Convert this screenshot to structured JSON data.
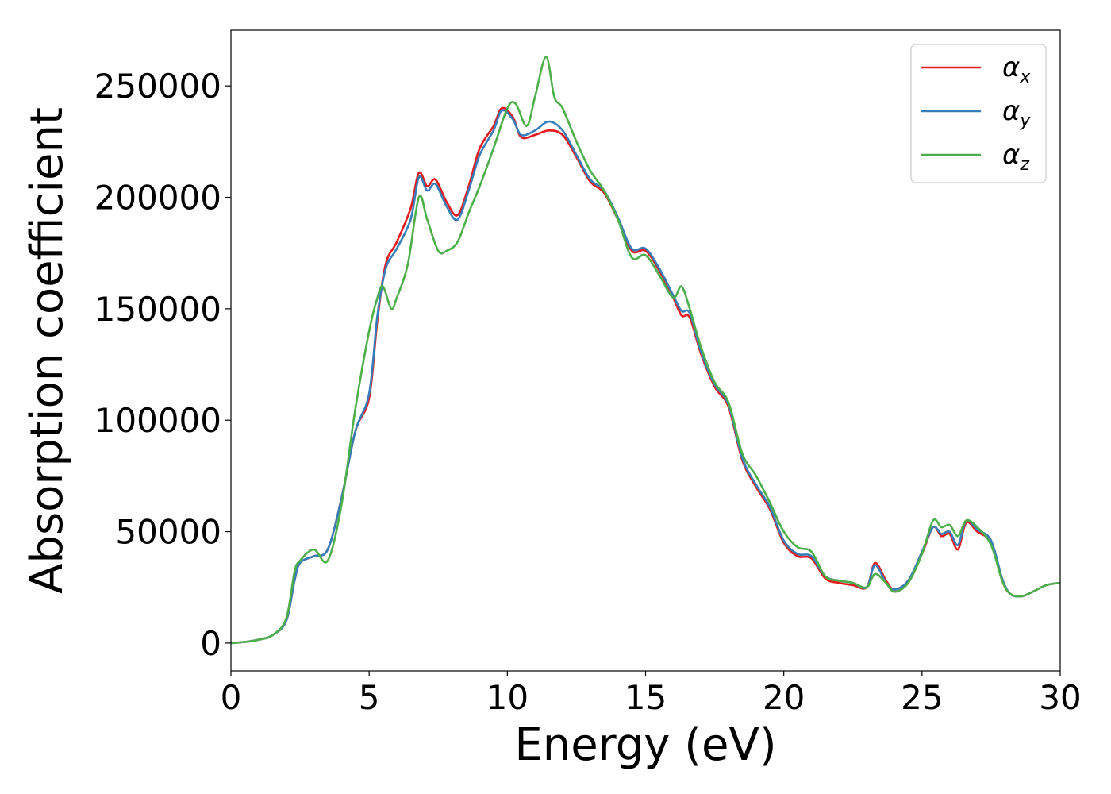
{
  "chart_data": {
    "type": "line",
    "title": "",
    "xlabel": "Energy (eV)",
    "ylabel": "Absorption coefficient",
    "xlim": [
      0,
      30
    ],
    "ylim": [
      -12500,
      275000
    ],
    "xticks": [
      0,
      5,
      10,
      15,
      20,
      25,
      30
    ],
    "yticks": [
      0,
      50000,
      100000,
      150000,
      200000,
      250000
    ],
    "grid": false,
    "legend_position": "upper right",
    "series": [
      {
        "name": "α_x",
        "base": "α",
        "sub": "x",
        "color": "#e41a1c",
        "x": [
          0,
          0.5,
          1,
          1.5,
          2,
          2.3,
          2.5,
          3,
          3.5,
          4,
          4.5,
          5,
          5.3,
          5.6,
          6,
          6.5,
          6.8,
          7.1,
          7.4,
          7.8,
          8.2,
          8.6,
          9,
          9.5,
          9.8,
          10.2,
          10.5,
          11,
          11.5,
          12,
          12.5,
          13,
          13.5,
          14,
          14.5,
          15,
          15.5,
          16,
          16.3,
          16.6,
          17,
          17.5,
          18,
          18.5,
          19,
          19.5,
          20,
          20.5,
          21,
          21.5,
          22,
          22.5,
          23,
          23.3,
          23.7,
          24,
          24.5,
          25,
          25.4,
          25.7,
          26,
          26.3,
          26.6,
          27,
          27.5,
          27.9,
          28.2,
          28.6,
          29,
          29.5,
          30
        ],
        "y": [
          0,
          500,
          1500,
          3500,
          10000,
          28000,
          36000,
          39000,
          42000,
          65000,
          95000,
          110000,
          145000,
          170000,
          180000,
          195000,
          211000,
          205000,
          208000,
          198000,
          192000,
          205000,
          222000,
          232000,
          240000,
          236000,
          227000,
          228000,
          230000,
          228000,
          218000,
          207000,
          202000,
          190000,
          176000,
          176000,
          167000,
          155000,
          147000,
          146000,
          130000,
          115000,
          106000,
          82000,
          70000,
          60000,
          45000,
          39000,
          38000,
          29000,
          27000,
          26000,
          25000,
          36000,
          28000,
          24000,
          28000,
          40000,
          52000,
          48000,
          49000,
          42000,
          54000,
          50000,
          45000,
          28000,
          22000,
          21000,
          23000,
          26000,
          27000
        ]
      },
      {
        "name": "α_y",
        "base": "α",
        "sub": "y",
        "color": "#377eb8",
        "x": [
          0,
          0.5,
          1,
          1.5,
          2,
          2.3,
          2.5,
          3,
          3.5,
          4,
          4.5,
          5,
          5.3,
          5.6,
          6,
          6.5,
          6.8,
          7.1,
          7.4,
          7.8,
          8.2,
          8.6,
          9,
          9.5,
          9.8,
          10.2,
          10.5,
          11,
          11.5,
          12,
          12.5,
          13,
          13.5,
          14,
          14.5,
          15,
          15.5,
          16,
          16.3,
          16.6,
          17,
          17.5,
          18,
          18.5,
          19,
          19.5,
          20,
          20.5,
          21,
          21.5,
          22,
          22.5,
          23,
          23.3,
          23.7,
          24,
          24.5,
          25,
          25.4,
          25.7,
          26,
          26.3,
          26.6,
          27,
          27.5,
          27.9,
          28.2,
          28.6,
          29,
          29.5,
          30
        ],
        "y": [
          0,
          500,
          1500,
          3500,
          10000,
          28000,
          36000,
          39000,
          42000,
          65000,
          95000,
          112000,
          147000,
          168000,
          177000,
          190000,
          209000,
          203000,
          206000,
          196000,
          190000,
          203000,
          219000,
          230000,
          239000,
          235000,
          228000,
          230000,
          234000,
          230000,
          219000,
          208000,
          203000,
          191000,
          177000,
          177000,
          168000,
          156000,
          149000,
          148000,
          131000,
          116000,
          107000,
          83000,
          71000,
          61000,
          46000,
          40000,
          39000,
          30000,
          28000,
          27000,
          25000,
          35000,
          27000,
          24000,
          28000,
          41000,
          52000,
          49000,
          50000,
          44000,
          55000,
          51000,
          46000,
          29000,
          22000,
          21000,
          23000,
          26000,
          27000
        ]
      },
      {
        "name": "α_z",
        "base": "α",
        "sub": "z",
        "color": "#4daf4a",
        "x": [
          0,
          0.5,
          1,
          1.5,
          2,
          2.3,
          2.5,
          3,
          3.5,
          4,
          4.5,
          5,
          5.3,
          5.5,
          5.8,
          6,
          6.4,
          6.8,
          7.1,
          7.5,
          7.8,
          8.2,
          8.6,
          9,
          9.5,
          10,
          10.3,
          10.7,
          11,
          11.4,
          11.7,
          12,
          12.5,
          13,
          13.5,
          14,
          14.5,
          15,
          15.5,
          16,
          16.3,
          16.6,
          17,
          17.5,
          18,
          18.5,
          19,
          19.5,
          20,
          20.5,
          21,
          21.5,
          22,
          22.5,
          23,
          23.3,
          23.7,
          24,
          24.5,
          25,
          25.4,
          25.7,
          26,
          26.3,
          26.6,
          27,
          27.5,
          27.9,
          28.2,
          28.6,
          29,
          29.5,
          30
        ],
        "y": [
          0,
          500,
          1500,
          3500,
          11000,
          32000,
          37000,
          42000,
          37000,
          62000,
          105000,
          140000,
          155000,
          160000,
          150000,
          155000,
          170000,
          200000,
          190000,
          176000,
          176000,
          180000,
          193000,
          205000,
          222000,
          240000,
          242000,
          232000,
          245000,
          263000,
          245000,
          240000,
          225000,
          212000,
          203000,
          190000,
          173000,
          174000,
          165000,
          155000,
          160000,
          150000,
          133000,
          117000,
          108000,
          85000,
          75000,
          63000,
          50000,
          43000,
          41000,
          30000,
          28000,
          27000,
          25000,
          31000,
          27000,
          23000,
          27000,
          40000,
          55000,
          52000,
          53000,
          48000,
          55000,
          52000,
          44000,
          28000,
          22000,
          21000,
          23000,
          26000,
          27000
        ]
      }
    ]
  }
}
